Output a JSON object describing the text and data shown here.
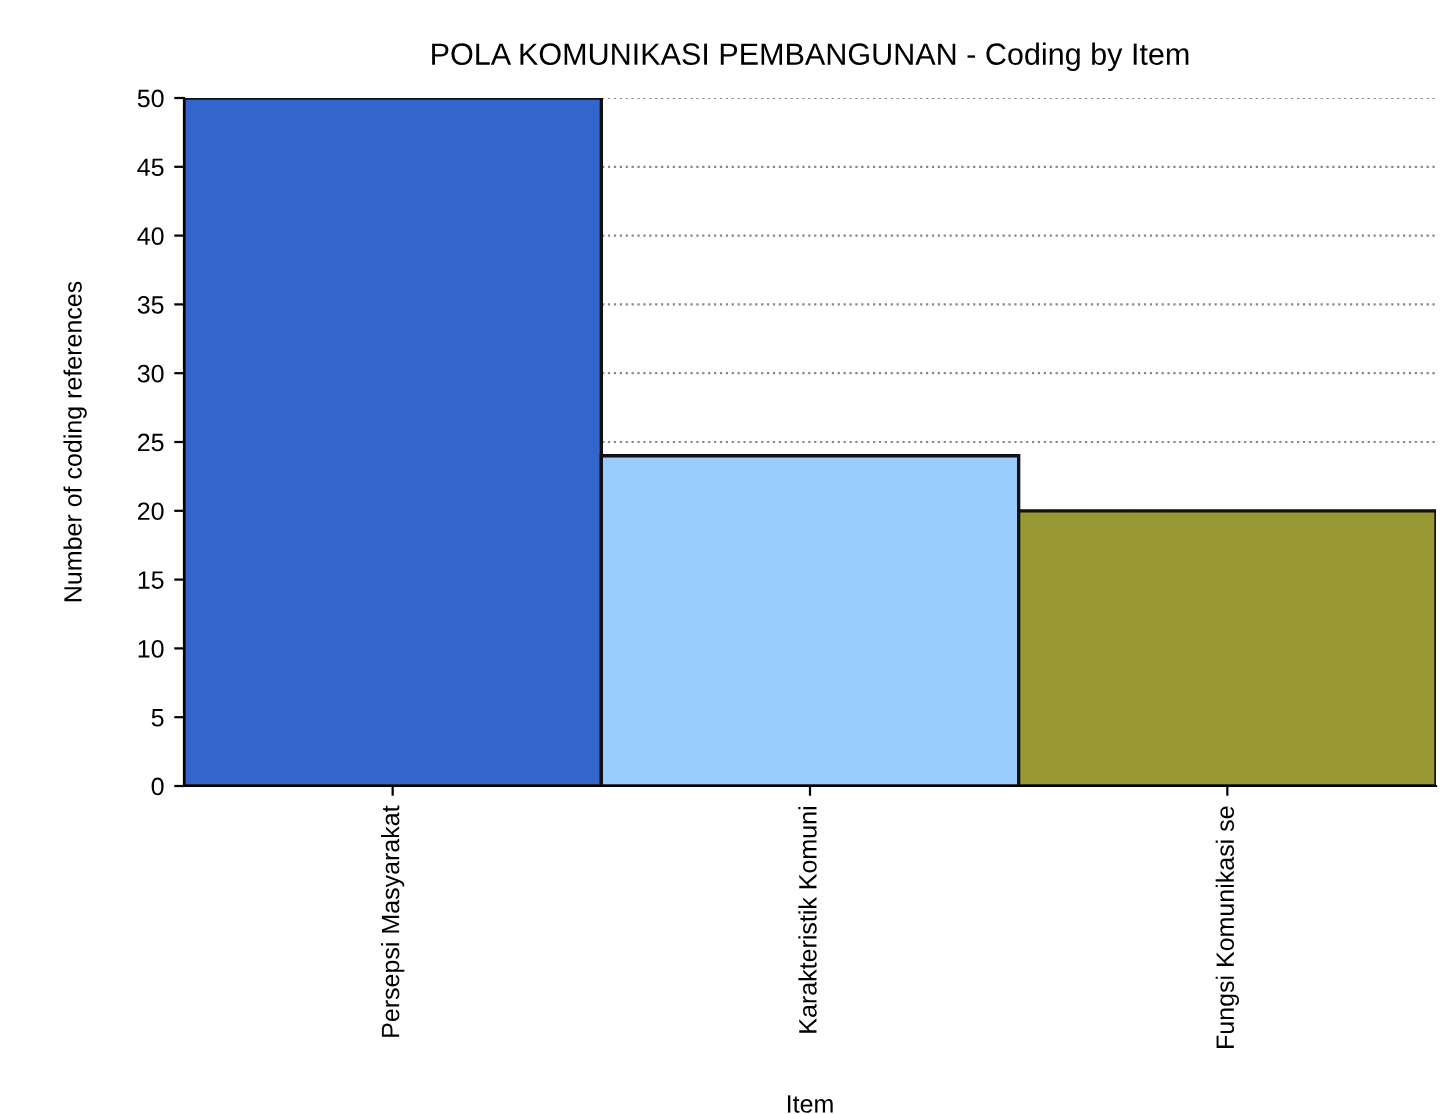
{
  "chart_data": {
    "type": "bar",
    "title": "POLA KOMUNIKASI PEMBANGUNAN - Coding by Item",
    "xlabel": "Item",
    "ylabel": "Number of coding references",
    "categories": [
      "Persepsi Masyarakat",
      "Karakteristik Komuni",
      "Fungsi Komunikasi se"
    ],
    "values": [
      50,
      24,
      20
    ],
    "colors": [
      "#3366cc",
      "#99ccff",
      "#999933"
    ],
    "ylim": [
      0,
      50
    ],
    "yticks": [
      0,
      5,
      10,
      15,
      20,
      25,
      30,
      35,
      40,
      45,
      50
    ],
    "grid": "y"
  }
}
